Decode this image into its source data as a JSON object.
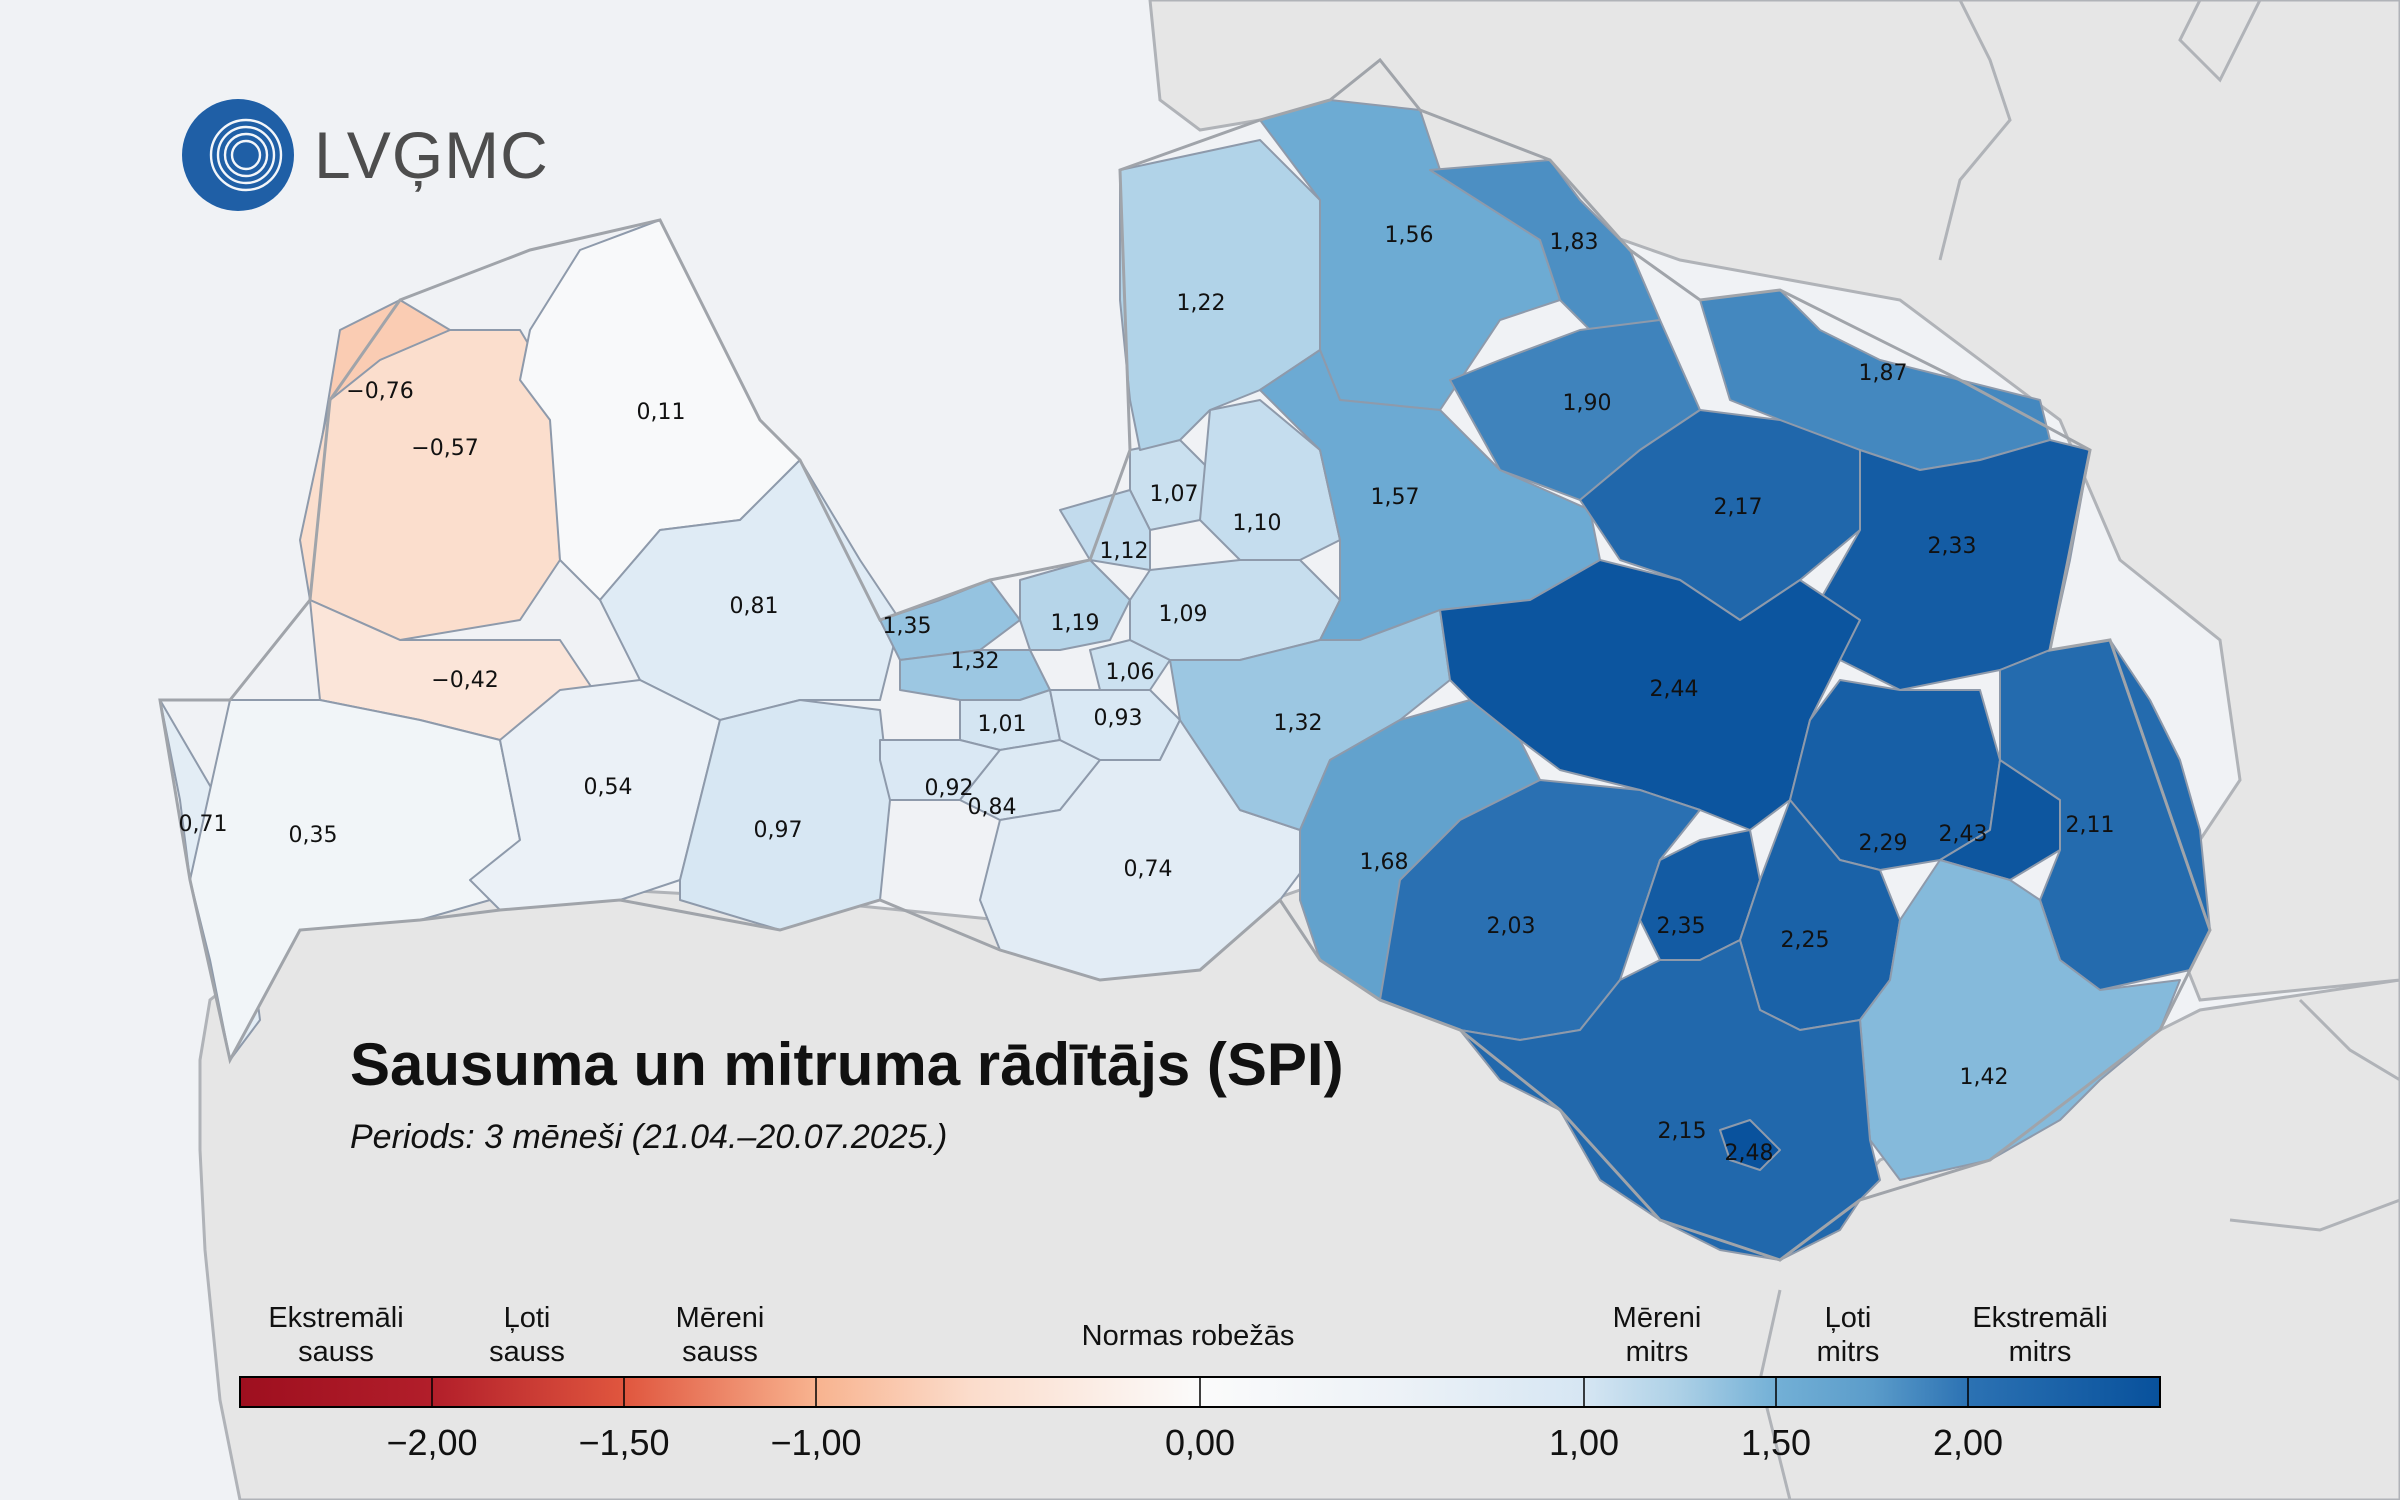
{
  "logo": {
    "text": "LVĢMC",
    "icon": "waves-globe-icon"
  },
  "title": "Sausuma un mitruma rādītājs (SPI)",
  "subtitle": "Periods: 3 mēneši (21.04.–20.07.2025.)",
  "colors": {
    "sea": "#f0f2f5",
    "neighbor_land": "#e6e6e6",
    "border": "#a8aaae",
    "region_outline": "#9aa4b2"
  },
  "regions": [
    {
      "id": "r1",
      "value": "−0,76",
      "spi": -0.76
    },
    {
      "id": "r2",
      "value": "−0,57",
      "spi": -0.57
    },
    {
      "id": "r3",
      "value": "0,11",
      "spi": 0.11
    },
    {
      "id": "r4",
      "value": "−0,42",
      "spi": -0.42
    },
    {
      "id": "r5",
      "value": "0,81",
      "spi": 0.81
    },
    {
      "id": "r6",
      "value": "0,71",
      "spi": 0.71
    },
    {
      "id": "r7",
      "value": "0,35",
      "spi": 0.35
    },
    {
      "id": "r8",
      "value": "0,54",
      "spi": 0.54
    },
    {
      "id": "r9",
      "value": "0,97",
      "spi": 0.97
    },
    {
      "id": "r10",
      "value": "1,35",
      "spi": 1.35
    },
    {
      "id": "r11",
      "value": "1,32",
      "spi": 1.32
    },
    {
      "id": "r12",
      "value": "1,19",
      "spi": 1.19
    },
    {
      "id": "r13",
      "value": "1,01",
      "spi": 1.01
    },
    {
      "id": "r14",
      "value": "0,92",
      "spi": 0.92
    },
    {
      "id": "r15",
      "value": "0,84",
      "spi": 0.84
    },
    {
      "id": "r16",
      "value": "1,06",
      "spi": 1.06
    },
    {
      "id": "r17",
      "value": "0,93",
      "spi": 0.93
    },
    {
      "id": "r18",
      "value": "1,07",
      "spi": 1.07
    },
    {
      "id": "r19",
      "value": "1,12",
      "spi": 1.12
    },
    {
      "id": "r20",
      "value": "1,10",
      "spi": 1.1
    },
    {
      "id": "r21",
      "value": "1,09",
      "spi": 1.09
    },
    {
      "id": "r22",
      "value": "0,74",
      "spi": 0.74
    },
    {
      "id": "r23",
      "value": "1,22",
      "spi": 1.22
    },
    {
      "id": "r24",
      "value": "1,56",
      "spi": 1.56
    },
    {
      "id": "r25",
      "value": "1,83",
      "spi": 1.83
    },
    {
      "id": "r26",
      "value": "1,57",
      "spi": 1.57
    },
    {
      "id": "r27",
      "value": "1,32",
      "spi": 1.32
    },
    {
      "id": "r28",
      "value": "1,68",
      "spi": 1.68
    },
    {
      "id": "r29",
      "value": "1,90",
      "spi": 1.9
    },
    {
      "id": "r30",
      "value": "1,87",
      "spi": 1.87
    },
    {
      "id": "r31",
      "value": "2,17",
      "spi": 2.17
    },
    {
      "id": "r32",
      "value": "2,33",
      "spi": 2.33
    },
    {
      "id": "r33",
      "value": "2,44",
      "spi": 2.44
    },
    {
      "id": "r34",
      "value": "2,29",
      "spi": 2.29
    },
    {
      "id": "r35",
      "value": "2,43",
      "spi": 2.43
    },
    {
      "id": "r36",
      "value": "2,11",
      "spi": 2.11
    },
    {
      "id": "r37",
      "value": "2,03",
      "spi": 2.03
    },
    {
      "id": "r38",
      "value": "2,35",
      "spi": 2.35
    },
    {
      "id": "r39",
      "value": "2,25",
      "spi": 2.25
    },
    {
      "id": "r40",
      "value": "1,42",
      "spi": 1.42
    },
    {
      "id": "r41",
      "value": "2,15",
      "spi": 2.15
    },
    {
      "id": "r42",
      "value": "2,48",
      "spi": 2.48
    }
  ],
  "legend": {
    "categories": [
      {
        "l1": "Ekstremāli",
        "l2": "sauss"
      },
      {
        "l1": "Ļoti",
        "l2": "sauss"
      },
      {
        "l1": "Mēreni",
        "l2": "sauss"
      },
      {
        "l1": "Normas robežās",
        "l2": ""
      },
      {
        "l1": "Mēreni",
        "l2": "mitrs"
      },
      {
        "l1": "Ļoti",
        "l2": "mitrs"
      },
      {
        "l1": "Ekstremāli",
        "l2": "mitrs"
      }
    ],
    "ticks": [
      "−2,00",
      "−1,50",
      "−1,00",
      "0,00",
      "1,00",
      "1,50",
      "2,00"
    ],
    "tick_values": [
      -2,
      -1.5,
      -1,
      0,
      1,
      1.5,
      2
    ],
    "range": [
      -2.5,
      2.5
    ],
    "gradient": [
      {
        "v": -2.5,
        "c": "#9e0f1f"
      },
      {
        "v": -2.0,
        "c": "#b21e2a"
      },
      {
        "v": -1.5,
        "c": "#e0563e"
      },
      {
        "v": -1.0,
        "c": "#f8b38f"
      },
      {
        "v": -0.6,
        "c": "#fbdccb"
      },
      {
        "v": 0.0,
        "c": "#fbfbfb"
      },
      {
        "v": 0.5,
        "c": "#edf2f7"
      },
      {
        "v": 1.0,
        "c": "#d6e6f3"
      },
      {
        "v": 1.25,
        "c": "#acd0e6"
      },
      {
        "v": 1.5,
        "c": "#73b0d6"
      },
      {
        "v": 1.75,
        "c": "#5b9cca"
      },
      {
        "v": 2.0,
        "c": "#2c72b3"
      },
      {
        "v": 2.5,
        "c": "#08519c"
      }
    ]
  }
}
